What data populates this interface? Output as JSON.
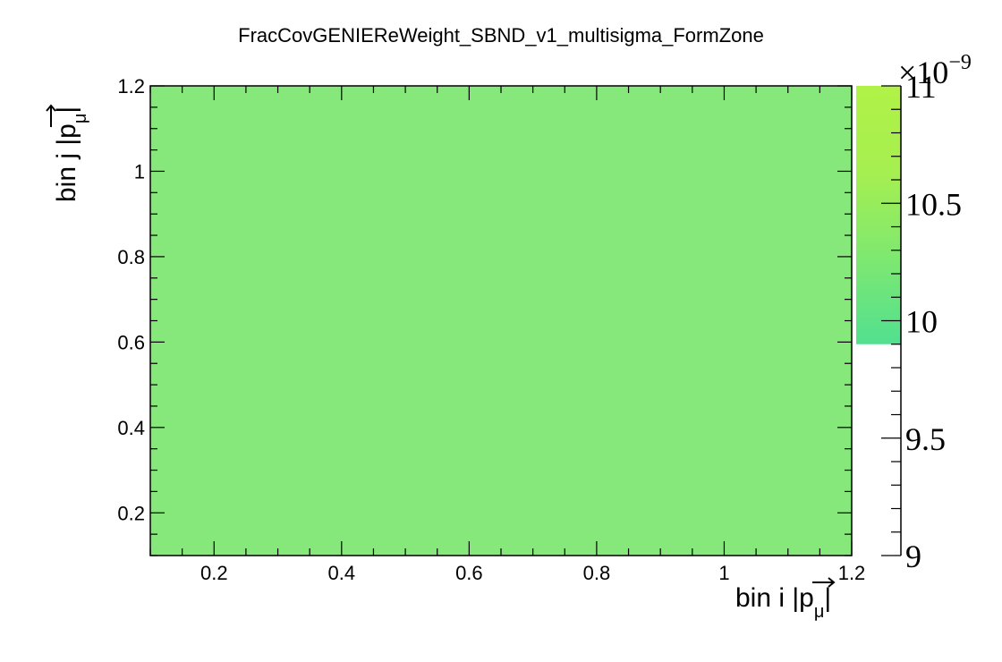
{
  "chart_data": {
    "type": "heatmap",
    "title": "FracCovGENIEReWeight_SBND_v1_multisigma_FormZone",
    "xlabel": {
      "main": "bin i |",
      "vec": "p",
      "sub": "μ",
      "end": "|"
    },
    "ylabel": {
      "main": "bin j |",
      "vec": "p",
      "sub": "μ",
      "end": "|"
    },
    "x_range": [
      0.1,
      1.2
    ],
    "y_range": [
      0.1,
      1.2
    ],
    "x_ticks": [
      "0.2",
      "0.4",
      "0.6",
      "0.8",
      "1",
      "1.2"
    ],
    "y_ticks": [
      "0.2",
      "0.4",
      "0.6",
      "0.8",
      "1",
      "1.2"
    ],
    "x_tick_values": [
      0.2,
      0.4,
      0.6,
      0.8,
      1.0,
      1.2
    ],
    "y_tick_values": [
      0.2,
      0.4,
      0.6,
      0.8,
      1.0,
      1.2
    ],
    "cells": [
      {
        "x": [
          0.1,
          1.2
        ],
        "y": [
          0.1,
          1.2
        ],
        "z": 9.9e-09,
        "color": "#86e87a"
      }
    ],
    "colorbar": {
      "range": [
        9,
        11
      ],
      "exponent_label": "×10",
      "exponent": "−9",
      "ticks": [
        "9",
        "9.5",
        "10",
        "10.5",
        "11"
      ],
      "tick_values": [
        9,
        9.5,
        10,
        10.5,
        11
      ],
      "filled_from": 9.9,
      "colors": [
        "#52e090",
        "#7ee870",
        "#a6ef50",
        "#b0f247"
      ]
    },
    "colors": {
      "cell": "#86e87a",
      "frame": "#000000"
    }
  }
}
